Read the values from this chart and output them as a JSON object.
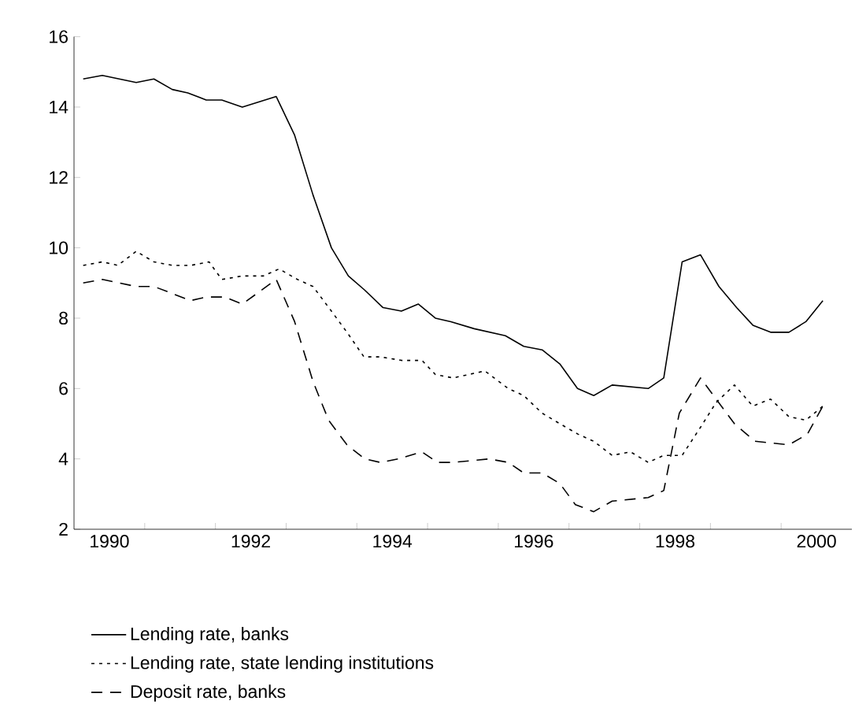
{
  "chart_data": {
    "type": "line",
    "xlim": [
      1990,
      2001
    ],
    "ylim": [
      2,
      16
    ],
    "yticks": [
      2,
      4,
      6,
      8,
      10,
      12,
      14,
      16
    ],
    "xticks": [
      {
        "value": 1991,
        "label": null
      },
      {
        "value": 1992,
        "label": null
      },
      {
        "value": 1993,
        "label": null
      },
      {
        "value": 1994,
        "label": null
      },
      {
        "value": 1995,
        "label": null
      },
      {
        "value": 1996,
        "label": null
      },
      {
        "value": 1997,
        "label": null
      },
      {
        "value": 1998,
        "label": null
      },
      {
        "value": 1999,
        "label": null
      },
      {
        "value": 2000,
        "label": null
      },
      {
        "value": 1990.5,
        "label": "1990"
      },
      {
        "value": 1992.5,
        "label": "1992"
      },
      {
        "value": 1994.5,
        "label": "1994"
      },
      {
        "value": 1996.5,
        "label": "1996"
      },
      {
        "value": 1998.5,
        "label": "1998"
      },
      {
        "value": 2000.5,
        "label": "2000"
      }
    ],
    "grid": false,
    "legend": "bottom",
    "marker": "none",
    "series": [
      {
        "name": "Lending rate, banks",
        "color": "#000000",
        "line_style": "solid",
        "x": [
          1990.13,
          1990.4,
          1990.88,
          1991.13,
          1991.39,
          1991.61,
          1991.87,
          1992.09,
          1992.38,
          1992.86,
          1993.12,
          1993.38,
          1993.64,
          1993.88,
          1994.11,
          1994.37,
          1994.63,
          1994.87,
          1995.11,
          1995.33,
          1995.66,
          1996.1,
          1996.36,
          1996.62,
          1996.87,
          1997.12,
          1997.35,
          1997.61,
          1998.12,
          1998.34,
          1998.6,
          1998.86,
          1999.12,
          1999.37,
          1999.6,
          1999.85,
          2000.11,
          2000.35,
          2000.59
        ],
        "values": [
          14.8,
          14.9,
          14.7,
          14.8,
          14.5,
          14.4,
          14.2,
          14.2,
          14.0,
          14.3,
          13.2,
          11.5,
          10.0,
          9.2,
          8.8,
          8.3,
          8.2,
          8.4,
          8.0,
          7.9,
          7.7,
          7.5,
          7.2,
          7.1,
          6.7,
          6.0,
          5.8,
          6.1,
          6.0,
          6.3,
          9.6,
          9.8,
          8.9,
          8.3,
          7.8,
          7.6,
          7.6,
          7.9,
          8.5
        ]
      },
      {
        "name": "Lending rate, state lending institutions",
        "color": "#000000",
        "line_style": "dotted",
        "x": [
          1990.13,
          1990.4,
          1990.62,
          1990.88,
          1991.13,
          1991.39,
          1991.65,
          1991.91,
          1992.09,
          1992.38,
          1992.68,
          1992.9,
          1993.16,
          1993.38,
          1993.64,
          1993.86,
          1994.1,
          1994.33,
          1994.63,
          1994.92,
          1995.11,
          1995.36,
          1995.81,
          1996.14,
          1996.36,
          1996.62,
          1996.87,
          1997.13,
          1997.35,
          1997.61,
          1997.87,
          1998.12,
          1998.34,
          1998.6,
          1998.86,
          1999.08,
          1999.34,
          1999.6,
          1999.85,
          2000.11,
          2000.35,
          2000.59
        ],
        "values": [
          9.5,
          9.6,
          9.5,
          9.9,
          9.6,
          9.5,
          9.5,
          9.6,
          9.1,
          9.2,
          9.2,
          9.4,
          9.1,
          8.9,
          8.2,
          7.6,
          6.9,
          6.9,
          6.8,
          6.8,
          6.4,
          6.3,
          6.5,
          6.0,
          5.8,
          5.3,
          5.0,
          4.7,
          4.5,
          4.1,
          4.2,
          3.9,
          4.1,
          4.1,
          4.9,
          5.6,
          6.1,
          5.5,
          5.7,
          5.2,
          5.1,
          5.5
        ]
      },
      {
        "name": "Deposit rate, banks",
        "color": "#000000",
        "line_style": "dashed",
        "x": [
          1990.13,
          1990.4,
          1990.88,
          1991.13,
          1991.39,
          1991.65,
          1991.87,
          1992.13,
          1992.38,
          1992.86,
          1993.12,
          1993.38,
          1993.6,
          1993.86,
          1994.11,
          1994.33,
          1994.59,
          1994.92,
          1995.14,
          1995.36,
          1995.87,
          1996.14,
          1996.36,
          1996.62,
          1996.87,
          1997.09,
          1997.35,
          1997.61,
          1998.12,
          1998.34,
          1998.56,
          1998.86,
          1999.08,
          1999.34,
          1999.63,
          2000.11,
          2000.37,
          2000.59
        ],
        "values": [
          9.0,
          9.1,
          8.9,
          8.9,
          8.7,
          8.5,
          8.6,
          8.6,
          8.4,
          9.1,
          7.9,
          6.2,
          5.1,
          4.4,
          4.0,
          3.9,
          4.0,
          4.2,
          3.9,
          3.9,
          4.0,
          3.9,
          3.6,
          3.6,
          3.3,
          2.7,
          2.5,
          2.8,
          2.9,
          3.1,
          5.3,
          6.3,
          5.7,
          5.0,
          4.5,
          4.4,
          4.7,
          5.5
        ]
      }
    ]
  }
}
